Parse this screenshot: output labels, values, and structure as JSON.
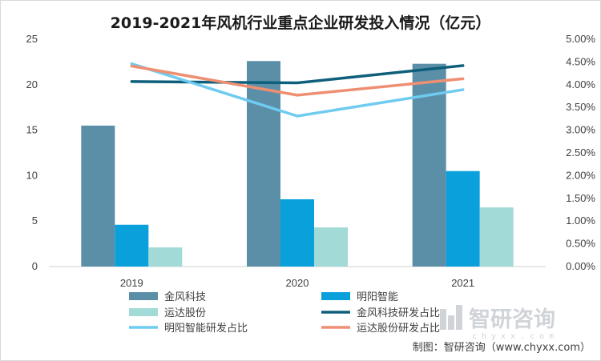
{
  "chart_data": {
    "type": "bar",
    "title": "2019-2021年风机行业重点企业研发投入情况（亿元）",
    "categories": [
      "2019",
      "2020",
      "2021"
    ],
    "ylim": [
      0,
      25
    ],
    "yticks": [
      "0",
      "5",
      "10",
      "15",
      "20",
      "25"
    ],
    "y2lim": [
      0,
      5
    ],
    "y2ticks": [
      "0.00%",
      "0.50%",
      "1.00%",
      "1.50%",
      "2.00%",
      "2.50%",
      "3.00%",
      "3.50%",
      "4.00%",
      "4.50%",
      "5.00%"
    ],
    "bar_series": [
      {
        "name": "金风科技",
        "values": [
          15.5,
          22.6,
          22.3
        ],
        "color": "#5b8fa8"
      },
      {
        "name": "明阳智能",
        "values": [
          4.6,
          7.4,
          10.5
        ],
        "color": "#0aa0dc"
      },
      {
        "name": "运达股份",
        "values": [
          2.1,
          4.3,
          6.5
        ],
        "color": "#a1dad6"
      }
    ],
    "line_series": [
      {
        "name": "金风科技研发占比",
        "values": [
          4.07,
          4.04,
          4.42
        ],
        "color": "#0e5f7b"
      },
      {
        "name": "明阳智能研发占比",
        "values": [
          4.46,
          3.31,
          3.89
        ],
        "color": "#6fcbf0"
      },
      {
        "name": "运达股份研发占比",
        "values": [
          4.41,
          3.77,
          4.13
        ],
        "color": "#ee8f72"
      }
    ],
    "legend_order": [
      "金风科技",
      "明阳智能",
      "运达股份",
      "金风科技研发占比",
      "明阳智能研发占比",
      "运达股份研发占比"
    ]
  },
  "source": "制图：智研咨询（www.chyxx.com）",
  "watermark": {
    "brand": "智研咨询",
    "domain": "chyxx.com"
  }
}
